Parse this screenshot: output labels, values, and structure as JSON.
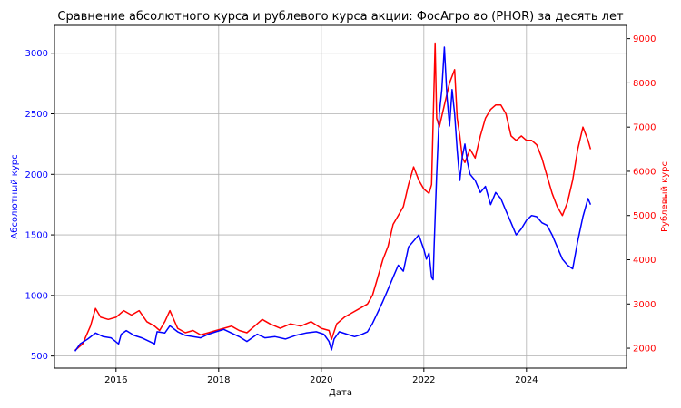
{
  "chart_data": {
    "type": "line",
    "title": "Сравнение абсолютного курса и рублевого курса акции: ФосАгро ао (PHOR) за десять лет",
    "xlabel": "Дата",
    "ylabel_left": "Абсолютный курс",
    "ylabel_right": "Рублевый курс",
    "x_ticks": [
      "2016",
      "2018",
      "2020",
      "2022",
      "2024"
    ],
    "y_left_ticks": [
      "500",
      "1000",
      "1500",
      "2000",
      "2500",
      "3000"
    ],
    "y_right_ticks": [
      "2000",
      "3000",
      "4000",
      "5000",
      "6000",
      "7000",
      "8000",
      "9000"
    ],
    "xlim": [
      2014.8,
      2025.95
    ],
    "ylim_left": [
      400,
      3230
    ],
    "ylim_right": [
      1550,
      9300
    ],
    "grid": true,
    "colors": {
      "left": "#0000ff",
      "right": "#ff0000"
    },
    "series": [
      {
        "axis": "left",
        "color": "#0000ff",
        "x": [
          2015.2,
          2015.3,
          2015.45,
          2015.6,
          2015.75,
          2015.9,
          2016.05,
          2016.1,
          2016.2,
          2016.35,
          2016.5,
          2016.65,
          2016.75,
          2016.8,
          2016.95,
          2017.05,
          2017.2,
          2017.35,
          2017.5,
          2017.65,
          2017.8,
          2017.95,
          2018.1,
          2018.25,
          2018.4,
          2018.55,
          2018.75,
          2018.9,
          2019.1,
          2019.3,
          2019.5,
          2019.7,
          2019.9,
          2020.05,
          2020.15,
          2020.2,
          2020.25,
          2020.35,
          2020.5,
          2020.65,
          2020.8,
          2020.9,
          2021.0,
          2021.1,
          2021.2,
          2021.3,
          2021.4,
          2021.5,
          2021.6,
          2021.7,
          2021.8,
          2021.9,
          2022.0,
          2022.05,
          2022.1,
          2022.15,
          2022.18,
          2022.2,
          2022.25,
          2022.3,
          2022.35,
          2022.4,
          2022.45,
          2022.5,
          2022.55,
          2022.6,
          2022.65,
          2022.7,
          2022.75,
          2022.8,
          2022.85,
          2022.9,
          2023.0,
          2023.1,
          2023.2,
          2023.3,
          2023.4,
          2023.5,
          2023.6,
          2023.7,
          2023.8,
          2023.9,
          2024.0,
          2024.1,
          2024.2,
          2024.3,
          2024.4,
          2024.5,
          2024.6,
          2024.7,
          2024.8,
          2024.9,
          2025.0,
          2025.1,
          2025.2,
          2025.25
        ],
        "values": [
          540,
          600,
          640,
          690,
          660,
          650,
          600,
          680,
          710,
          670,
          650,
          620,
          600,
          700,
          690,
          750,
          700,
          670,
          660,
          650,
          680,
          700,
          720,
          690,
          660,
          620,
          680,
          650,
          660,
          640,
          670,
          690,
          700,
          680,
          620,
          550,
          640,
          700,
          680,
          660,
          680,
          700,
          770,
          860,
          950,
          1050,
          1150,
          1250,
          1200,
          1400,
          1450,
          1500,
          1380,
          1300,
          1350,
          1150,
          1130,
          1400,
          2000,
          2500,
          2700,
          3050,
          2650,
          2400,
          2700,
          2500,
          2200,
          1950,
          2150,
          2250,
          2100,
          2000,
          1950,
          1850,
          1900,
          1750,
          1850,
          1800,
          1700,
          1600,
          1500,
          1550,
          1620,
          1660,
          1650,
          1600,
          1580,
          1500,
          1400,
          1300,
          1250,
          1220,
          1450,
          1650,
          1800,
          1750
        ]
      },
      {
        "axis": "right",
        "color": "#ff0000",
        "x": [
          2015.2,
          2015.35,
          2015.5,
          2015.6,
          2015.7,
          2015.85,
          2016.0,
          2016.15,
          2016.3,
          2016.45,
          2016.6,
          2016.75,
          2016.85,
          2016.95,
          2017.05,
          2017.2,
          2017.35,
          2017.5,
          2017.65,
          2017.8,
          2017.95,
          2018.1,
          2018.25,
          2018.4,
          2018.55,
          2018.7,
          2018.85,
          2019.0,
          2019.2,
          2019.4,
          2019.6,
          2019.8,
          2020.0,
          2020.15,
          2020.2,
          2020.3,
          2020.45,
          2020.6,
          2020.75,
          2020.9,
          2021.0,
          2021.1,
          2021.2,
          2021.3,
          2021.4,
          2021.5,
          2021.6,
          2021.7,
          2021.8,
          2021.9,
          2022.0,
          2022.1,
          2022.15,
          2022.22,
          2022.25,
          2022.3,
          2022.4,
          2022.5,
          2022.6,
          2022.65,
          2022.7,
          2022.75,
          2022.8,
          2022.9,
          2023.0,
          2023.1,
          2023.2,
          2023.3,
          2023.4,
          2023.5,
          2023.6,
          2023.7,
          2023.8,
          2023.9,
          2024.0,
          2024.1,
          2024.2,
          2024.3,
          2024.4,
          2024.5,
          2024.6,
          2024.7,
          2024.8,
          2024.9,
          2025.0,
          2025.1,
          2025.2,
          2025.25
        ],
        "values": [
          1950,
          2100,
          2500,
          2900,
          2700,
          2650,
          2700,
          2850,
          2750,
          2850,
          2600,
          2500,
          2400,
          2600,
          2850,
          2450,
          2350,
          2400,
          2300,
          2350,
          2400,
          2450,
          2500,
          2400,
          2350,
          2500,
          2650,
          2550,
          2450,
          2550,
          2500,
          2600,
          2450,
          2400,
          2200,
          2550,
          2700,
          2800,
          2900,
          3000,
          3200,
          3600,
          4000,
          4300,
          4800,
          5000,
          5200,
          5700,
          6100,
          5800,
          5600,
          5500,
          5700,
          8900,
          7200,
          7000,
          7500,
          8000,
          8300,
          7200,
          6800,
          6300,
          6200,
          6500,
          6300,
          6800,
          7200,
          7400,
          7500,
          7500,
          7300,
          6800,
          6700,
          6800,
          6700,
          6700,
          6600,
          6300,
          5900,
          5500,
          5200,
          5000,
          5300,
          5800,
          6500,
          7000,
          6700,
          6500
        ]
      }
    ]
  }
}
